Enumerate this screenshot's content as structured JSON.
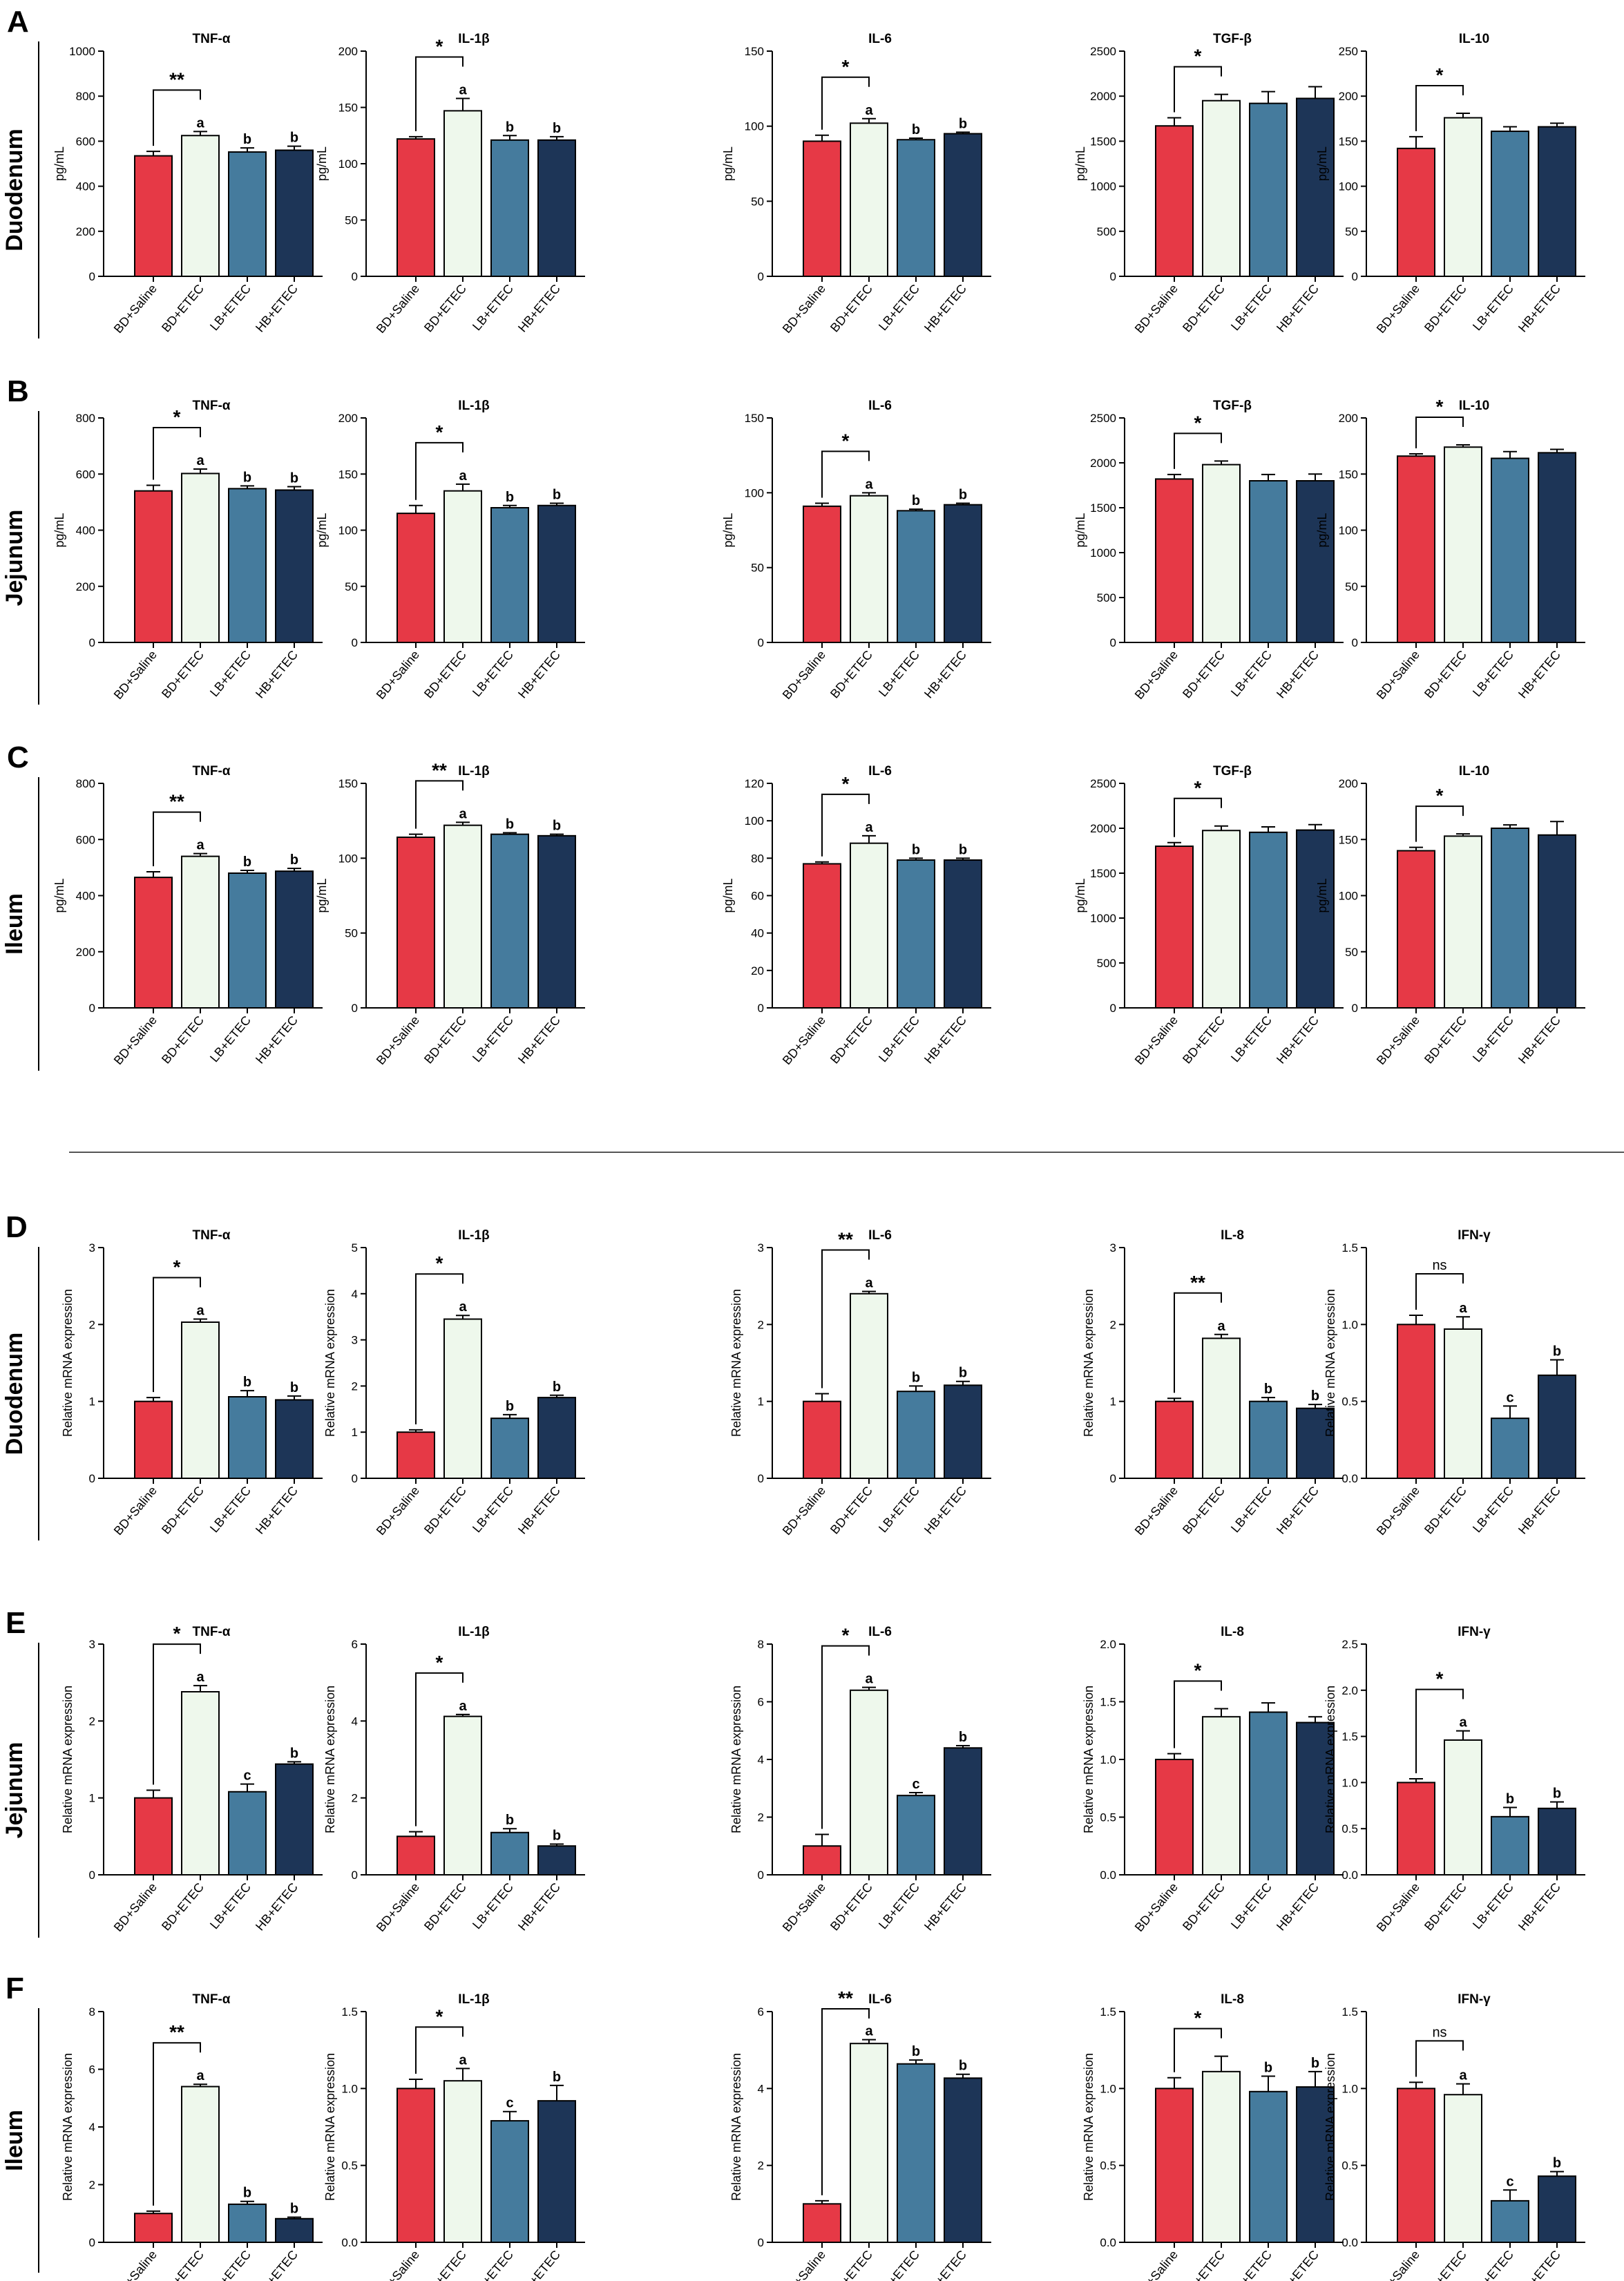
{
  "colors": {
    "bd_saline": "#e63946",
    "bd_etec": "#eef8ec",
    "lb_etec": "#457b9d",
    "hb_etec": "#1d3557",
    "axis": "#000000"
  },
  "categories": [
    "BD+Saline",
    "BD+ETEC",
    "LB+ETEC",
    "HB+ETEC"
  ],
  "ylabels": {
    "elisa": "pg/mL",
    "mrna": "Relative mRNA expression"
  },
  "panels": [
    {
      "letter": "A",
      "tissue": "Duodenum"
    },
    {
      "letter": "B",
      "tissue": "Jejunum"
    },
    {
      "letter": "C",
      "tissue": "Ileum"
    },
    {
      "letter": "D",
      "tissue": "Duodenum"
    },
    {
      "letter": "E",
      "tissue": "Jejunum"
    },
    {
      "letter": "F",
      "tissue": "Ileum"
    }
  ],
  "chart_data": [
    {
      "type": "bar",
      "panel": "A",
      "title": "TNF-α",
      "ylabel": "pg/mL",
      "categories": [
        "BD+Saline",
        "BD+ETEC",
        "LB+ETEC",
        "HB+ETEC"
      ],
      "values": [
        535,
        625,
        552,
        560
      ],
      "errors": [
        20,
        18,
        18,
        18
      ],
      "ylim": [
        0,
        1000
      ],
      "yticks": [
        0,
        200,
        400,
        600,
        800,
        1000
      ],
      "letters": [
        "",
        "a",
        "b",
        "b"
      ],
      "sig": "**"
    },
    {
      "type": "bar",
      "panel": "A",
      "title": "IL-1β",
      "ylabel": "pg/mL",
      "categories": [
        "BD+Saline",
        "BD+ETEC",
        "LB+ETEC",
        "HB+ETEC"
      ],
      "values": [
        122,
        147,
        121,
        121
      ],
      "errors": [
        2,
        11,
        4,
        3
      ],
      "ylim": [
        0,
        200
      ],
      "yticks": [
        0,
        50,
        100,
        150,
        200
      ],
      "letters": [
        "",
        "a",
        "b",
        "b"
      ],
      "sig": "*"
    },
    {
      "type": "bar",
      "panel": "A",
      "title": "IL-6",
      "ylabel": "pg/mL",
      "categories": [
        "BD+Saline",
        "BD+ETEC",
        "LB+ETEC",
        "HB+ETEC"
      ],
      "values": [
        90,
        102,
        91,
        95
      ],
      "errors": [
        4,
        3,
        1,
        1
      ],
      "ylim": [
        0,
        150
      ],
      "yticks": [
        0,
        50,
        100,
        150
      ],
      "letters": [
        "",
        "a",
        "b",
        "b"
      ],
      "sig": "*"
    },
    {
      "type": "bar",
      "panel": "A",
      "title": "TGF-β",
      "ylabel": "pg/mL",
      "categories": [
        "BD+Saline",
        "BD+ETEC",
        "LB+ETEC",
        "HB+ETEC"
      ],
      "values": [
        1670,
        1950,
        1920,
        1975
      ],
      "errors": [
        90,
        70,
        130,
        130
      ],
      "ylim": [
        0,
        2500
      ],
      "yticks": [
        0,
        500,
        1000,
        1500,
        2000,
        2500
      ],
      "letters": [
        "",
        "",
        "",
        ""
      ],
      "sig": "*"
    },
    {
      "type": "bar",
      "panel": "A",
      "title": "IL-10",
      "ylabel": "pg/mL",
      "categories": [
        "BD+Saline",
        "BD+ETEC",
        "LB+ETEC",
        "HB+ETEC"
      ],
      "values": [
        142,
        176,
        161,
        166
      ],
      "errors": [
        13,
        5,
        5,
        4
      ],
      "ylim": [
        0,
        250
      ],
      "yticks": [
        0,
        50,
        100,
        150,
        200,
        250
      ],
      "letters": [
        "",
        "",
        "",
        ""
      ],
      "sig": "*"
    },
    {
      "type": "bar",
      "panel": "B",
      "title": "TNF-α",
      "ylabel": "pg/mL",
      "categories": [
        "BD+Saline",
        "BD+ETEC",
        "LB+ETEC",
        "HB+ETEC"
      ],
      "values": [
        540,
        602,
        548,
        543
      ],
      "errors": [
        20,
        16,
        10,
        12
      ],
      "ylim": [
        0,
        800
      ],
      "yticks": [
        0,
        200,
        400,
        600,
        800
      ],
      "letters": [
        "",
        "a",
        "b",
        "b"
      ],
      "sig": "*"
    },
    {
      "type": "bar",
      "panel": "B",
      "title": "IL-1β",
      "ylabel": "pg/mL",
      "categories": [
        "BD+Saline",
        "BD+ETEC",
        "LB+ETEC",
        "HB+ETEC"
      ],
      "values": [
        115,
        135,
        120,
        122
      ],
      "errors": [
        7,
        6,
        2,
        2
      ],
      "ylim": [
        0,
        200
      ],
      "yticks": [
        0,
        50,
        100,
        150,
        200
      ],
      "letters": [
        "",
        "a",
        "b",
        "b"
      ],
      "sig": "*"
    },
    {
      "type": "bar",
      "panel": "B",
      "title": "IL-6",
      "ylabel": "pg/mL",
      "categories": [
        "BD+Saline",
        "BD+ETEC",
        "LB+ETEC",
        "HB+ETEC"
      ],
      "values": [
        91,
        98,
        88,
        92
      ],
      "errors": [
        2,
        2,
        1,
        1
      ],
      "ylim": [
        0,
        150
      ],
      "yticks": [
        0,
        50,
        100,
        150
      ],
      "letters": [
        "",
        "a",
        "b",
        "b"
      ],
      "sig": "*"
    },
    {
      "type": "bar",
      "panel": "B",
      "title": "TGF-β",
      "ylabel": "pg/mL",
      "categories": [
        "BD+Saline",
        "BD+ETEC",
        "LB+ETEC",
        "HB+ETEC"
      ],
      "values": [
        1820,
        1980,
        1800,
        1800
      ],
      "errors": [
        50,
        40,
        70,
        75
      ],
      "ylim": [
        0,
        2500
      ],
      "yticks": [
        0,
        500,
        1000,
        1500,
        2000,
        2500
      ],
      "letters": [
        "",
        "",
        "",
        ""
      ],
      "sig": "*"
    },
    {
      "type": "bar",
      "panel": "B",
      "title": "IL-10",
      "ylabel": "pg/mL",
      "categories": [
        "BD+Saline",
        "BD+ETEC",
        "LB+ETEC",
        "HB+ETEC"
      ],
      "values": [
        166,
        174,
        164,
        169
      ],
      "errors": [
        2,
        2,
        6,
        3
      ],
      "ylim": [
        0,
        200
      ],
      "yticks": [
        0,
        50,
        100,
        150,
        200
      ],
      "letters": [
        "",
        "",
        "",
        ""
      ],
      "sig": "*"
    },
    {
      "type": "bar",
      "panel": "C",
      "title": "TNF-α",
      "ylabel": "pg/mL",
      "categories": [
        "BD+Saline",
        "BD+ETEC",
        "LB+ETEC",
        "HB+ETEC"
      ],
      "values": [
        465,
        540,
        480,
        487
      ],
      "errors": [
        20,
        10,
        10,
        10
      ],
      "ylim": [
        0,
        800
      ],
      "yticks": [
        0,
        200,
        400,
        600,
        800
      ],
      "letters": [
        "",
        "a",
        "b",
        "b"
      ],
      "sig": "**"
    },
    {
      "type": "bar",
      "panel": "C",
      "title": "IL-1β",
      "ylabel": "pg/mL",
      "categories": [
        "BD+Saline",
        "BD+ETEC",
        "LB+ETEC",
        "HB+ETEC"
      ],
      "values": [
        114,
        122,
        116,
        115
      ],
      "errors": [
        2,
        2,
        1,
        1
      ],
      "ylim": [
        0,
        150
      ],
      "yticks": [
        0,
        50,
        100,
        150
      ],
      "letters": [
        "",
        "a",
        "b",
        "b"
      ],
      "sig": "**"
    },
    {
      "type": "bar",
      "panel": "C",
      "title": "IL-6",
      "ylabel": "pg/mL",
      "categories": [
        "BD+Saline",
        "BD+ETEC",
        "LB+ETEC",
        "HB+ETEC"
      ],
      "values": [
        77,
        88,
        79,
        79
      ],
      "errors": [
        1,
        4,
        1,
        1
      ],
      "ylim": [
        0,
        120
      ],
      "yticks": [
        0,
        20,
        40,
        60,
        80,
        100,
        120
      ],
      "letters": [
        "",
        "a",
        "b",
        "b"
      ],
      "sig": "*"
    },
    {
      "type": "bar",
      "panel": "C",
      "title": "TGF-β",
      "ylabel": "pg/mL",
      "categories": [
        "BD+Saline",
        "BD+ETEC",
        "LB+ETEC",
        "HB+ETEC"
      ],
      "values": [
        1800,
        1975,
        1955,
        1980
      ],
      "errors": [
        40,
        50,
        60,
        60
      ],
      "ylim": [
        0,
        2500
      ],
      "yticks": [
        0,
        500,
        1000,
        1500,
        2000,
        2500
      ],
      "letters": [
        "",
        "",
        "",
        ""
      ],
      "sig": "*"
    },
    {
      "type": "bar",
      "panel": "C",
      "title": "IL-10",
      "ylabel": "pg/mL",
      "categories": [
        "BD+Saline",
        "BD+ETEC",
        "LB+ETEC",
        "HB+ETEC"
      ],
      "values": [
        140,
        153,
        160,
        154
      ],
      "errors": [
        3,
        2,
        3,
        12
      ],
      "ylim": [
        0,
        200
      ],
      "yticks": [
        0,
        50,
        100,
        150,
        200
      ],
      "letters": [
        "",
        "",
        "",
        ""
      ],
      "sig": "*"
    },
    {
      "type": "bar",
      "panel": "D",
      "title": "TNF-α",
      "ylabel": "Relative mRNA expression",
      "categories": [
        "BD+Saline",
        "BD+ETEC",
        "LB+ETEC",
        "HB+ETEC"
      ],
      "values": [
        1.0,
        2.03,
        1.06,
        1.02
      ],
      "errors": [
        0.05,
        0.04,
        0.08,
        0.05
      ],
      "ylim": [
        0,
        3
      ],
      "yticks": [
        0,
        1,
        2,
        3
      ],
      "letters": [
        "",
        "a",
        "b",
        "b"
      ],
      "sig": "*"
    },
    {
      "type": "bar",
      "panel": "D",
      "title": "IL-1β",
      "ylabel": "Relative mRNA expression",
      "categories": [
        "BD+Saline",
        "BD+ETEC",
        "LB+ETEC",
        "HB+ETEC"
      ],
      "values": [
        1.0,
        3.45,
        1.3,
        1.75
      ],
      "errors": [
        0.05,
        0.08,
        0.08,
        0.05
      ],
      "ylim": [
        0,
        5
      ],
      "yticks": [
        0,
        1,
        2,
        3,
        4,
        5
      ],
      "letters": [
        "",
        "a",
        "b",
        "b"
      ],
      "sig": "*"
    },
    {
      "type": "bar",
      "panel": "D",
      "title": "IL-6",
      "ylabel": "Relative mRNA expression",
      "categories": [
        "BD+Saline",
        "BD+ETEC",
        "LB+ETEC",
        "HB+ETEC"
      ],
      "values": [
        1.0,
        2.4,
        1.13,
        1.21
      ],
      "errors": [
        0.1,
        0.03,
        0.07,
        0.05
      ],
      "ylim": [
        0,
        3
      ],
      "yticks": [
        0,
        1,
        2,
        3
      ],
      "letters": [
        "",
        "a",
        "b",
        "b"
      ],
      "sig": "**"
    },
    {
      "type": "bar",
      "panel": "D",
      "title": "IL-8",
      "ylabel": "Relative mRNA expression",
      "categories": [
        "BD+Saline",
        "BD+ETEC",
        "LB+ETEC",
        "HB+ETEC"
      ],
      "values": [
        1.0,
        1.82,
        1.0,
        0.91
      ],
      "errors": [
        0.04,
        0.05,
        0.05,
        0.05
      ],
      "ylim": [
        0,
        3
      ],
      "yticks": [
        0,
        1,
        2,
        3
      ],
      "letters": [
        "",
        "a",
        "b",
        "b"
      ],
      "sig": "**"
    },
    {
      "type": "bar",
      "panel": "D",
      "title": "IFN-γ",
      "ylabel": "Relative mRNA expression",
      "categories": [
        "BD+Saline",
        "BD+ETEC",
        "LB+ETEC",
        "HB+ETEC"
      ],
      "values": [
        1.0,
        0.97,
        0.39,
        0.67
      ],
      "errors": [
        0.06,
        0.08,
        0.08,
        0.1
      ],
      "ylim": [
        0,
        1.5
      ],
      "yticks": [
        0,
        0.5,
        1.0,
        1.5
      ],
      "letters": [
        "",
        "a",
        "c",
        "b"
      ],
      "sig": "ns"
    },
    {
      "type": "bar",
      "panel": "E",
      "title": "TNF-α",
      "ylabel": "Relative mRNA expression",
      "categories": [
        "BD+Saline",
        "BD+ETEC",
        "LB+ETEC",
        "HB+ETEC"
      ],
      "values": [
        1.0,
        2.38,
        1.08,
        1.44
      ],
      "errors": [
        0.1,
        0.08,
        0.1,
        0.03
      ],
      "ylim": [
        0,
        3
      ],
      "yticks": [
        0,
        1,
        2,
        3
      ],
      "letters": [
        "",
        "a",
        "c",
        "b"
      ],
      "sig": "*"
    },
    {
      "type": "bar",
      "panel": "E",
      "title": "IL-1β",
      "ylabel": "Relative mRNA expression",
      "categories": [
        "BD+Saline",
        "BD+ETEC",
        "LB+ETEC",
        "HB+ETEC"
      ],
      "values": [
        1.0,
        4.12,
        1.1,
        0.75
      ],
      "errors": [
        0.12,
        0.05,
        0.1,
        0.05
      ],
      "ylim": [
        0,
        6
      ],
      "yticks": [
        0,
        2,
        4,
        6
      ],
      "letters": [
        "",
        "a",
        "b",
        "b"
      ],
      "sig": "*"
    },
    {
      "type": "bar",
      "panel": "E",
      "title": "IL-6",
      "ylabel": "Relative mRNA expression",
      "categories": [
        "BD+Saline",
        "BD+ETEC",
        "LB+ETEC",
        "HB+ETEC"
      ],
      "values": [
        1.0,
        6.4,
        2.75,
        4.4
      ],
      "errors": [
        0.4,
        0.1,
        0.1,
        0.08
      ],
      "ylim": [
        0,
        8
      ],
      "yticks": [
        0,
        2,
        4,
        6,
        8
      ],
      "letters": [
        "",
        "a",
        "c",
        "b"
      ],
      "sig": "*"
    },
    {
      "type": "bar",
      "panel": "E",
      "title": "IL-8",
      "ylabel": "Relative mRNA expression",
      "categories": [
        "BD+Saline",
        "BD+ETEC",
        "LB+ETEC",
        "HB+ETEC"
      ],
      "values": [
        1.0,
        1.37,
        1.41,
        1.32
      ],
      "errors": [
        0.05,
        0.07,
        0.08,
        0.05
      ],
      "ylim": [
        0,
        2.0
      ],
      "yticks": [
        0,
        0.5,
        1.0,
        1.5,
        2.0
      ],
      "letters": [
        "",
        "",
        "",
        ""
      ],
      "sig": "*"
    },
    {
      "type": "bar",
      "panel": "E",
      "title": "IFN-γ",
      "ylabel": "Relative mRNA expression",
      "categories": [
        "BD+Saline",
        "BD+ETEC",
        "LB+ETEC",
        "HB+ETEC"
      ],
      "values": [
        1.0,
        1.46,
        0.63,
        0.72
      ],
      "errors": [
        0.04,
        0.1,
        0.1,
        0.07
      ],
      "ylim": [
        0,
        2.5
      ],
      "yticks": [
        0,
        0.5,
        1.0,
        1.5,
        2.0,
        2.5
      ],
      "letters": [
        "",
        "a",
        "b",
        "b"
      ],
      "sig": "*"
    },
    {
      "type": "bar",
      "panel": "F",
      "title": "TNF-α",
      "ylabel": "Relative mRNA expression",
      "categories": [
        "BD+Saline",
        "BD+ETEC",
        "LB+ETEC",
        "HB+ETEC"
      ],
      "values": [
        1.0,
        5.4,
        1.32,
        0.82
      ],
      "errors": [
        0.08,
        0.08,
        0.1,
        0.05
      ],
      "ylim": [
        0,
        8
      ],
      "yticks": [
        0,
        2,
        4,
        6,
        8
      ],
      "letters": [
        "",
        "a",
        "b",
        "b"
      ],
      "sig": "**"
    },
    {
      "type": "bar",
      "panel": "F",
      "title": "IL-1β",
      "ylabel": "Relative mRNA expression",
      "categories": [
        "BD+Saline",
        "BD+ETEC",
        "LB+ETEC",
        "HB+ETEC"
      ],
      "values": [
        1.0,
        1.05,
        0.79,
        0.92
      ],
      "errors": [
        0.06,
        0.08,
        0.06,
        0.1
      ],
      "ylim": [
        0,
        1.5
      ],
      "yticks": [
        0,
        0.5,
        1.0,
        1.5
      ],
      "letters": [
        "",
        "a",
        "c",
        "b"
      ],
      "sig": "*"
    },
    {
      "type": "bar",
      "panel": "F",
      "title": "IL-6",
      "ylabel": "Relative mRNA expression",
      "categories": [
        "BD+Saline",
        "BD+ETEC",
        "LB+ETEC",
        "HB+ETEC"
      ],
      "values": [
        1.0,
        5.17,
        4.64,
        4.27
      ],
      "errors": [
        0.08,
        0.1,
        0.1,
        0.1
      ],
      "ylim": [
        0,
        6
      ],
      "yticks": [
        0,
        2,
        4,
        6
      ],
      "letters": [
        "",
        "a",
        "b",
        "b"
      ],
      "sig": "**"
    },
    {
      "type": "bar",
      "panel": "F",
      "title": "IL-8",
      "ylabel": "Relative mRNA expression",
      "categories": [
        "BD+Saline",
        "BD+ETEC",
        "LB+ETEC",
        "HB+ETEC"
      ],
      "values": [
        1.0,
        1.11,
        0.98,
        1.01
      ],
      "errors": [
        0.07,
        0.1,
        0.1,
        0.1
      ],
      "ylim": [
        0,
        1.5
      ],
      "yticks": [
        0,
        0.5,
        1.0,
        1.5
      ],
      "letters": [
        "",
        "",
        "b",
        "b"
      ],
      "sig": "*"
    },
    {
      "type": "bar",
      "panel": "F",
      "title": "IFN-γ",
      "ylabel": "Relative mRNA expression",
      "categories": [
        "BD+Saline",
        "BD+ETEC",
        "LB+ETEC",
        "HB+ETEC"
      ],
      "values": [
        1.0,
        0.96,
        0.27,
        0.43
      ],
      "errors": [
        0.04,
        0.07,
        0.07,
        0.03
      ],
      "ylim": [
        0,
        1.5
      ],
      "yticks": [
        0,
        0.5,
        1.0,
        1.5
      ],
      "letters": [
        "",
        "a",
        "c",
        "b"
      ],
      "sig": "ns"
    }
  ]
}
